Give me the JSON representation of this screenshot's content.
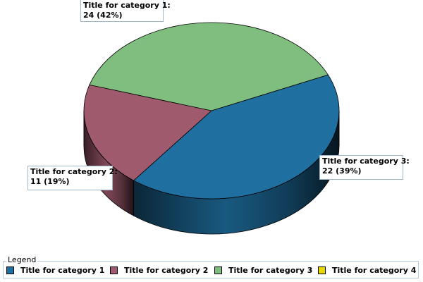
{
  "chart_data": {
    "type": "pie",
    "title": "",
    "slices": [
      {
        "label": "Title for category 1",
        "value": 24,
        "percent": "42%",
        "color": "#1f6fa0",
        "callout": [
          "Title for category 1:",
          "24 (42%)"
        ]
      },
      {
        "label": "Title for category 2",
        "value": 11,
        "percent": "19%",
        "color": "#a05a6e",
        "callout": [
          "Title for category 2:",
          "11 (19%)"
        ]
      },
      {
        "label": "Title for category 3",
        "value": 22,
        "percent": "39%",
        "color": "#7fbe7f",
        "callout": [
          "Title for category 3:",
          "22 (39%)"
        ]
      },
      {
        "label": "Title for category 4",
        "value": 0,
        "percent": "0%",
        "color": "#e6d800",
        "callout": []
      }
    ],
    "style": "3d",
    "legend": {
      "title": "Legend",
      "placement": "bottom",
      "entries": [
        "Title for category 1",
        "Title for category 2",
        "Title for category 3",
        "Title for category 4"
      ]
    }
  }
}
